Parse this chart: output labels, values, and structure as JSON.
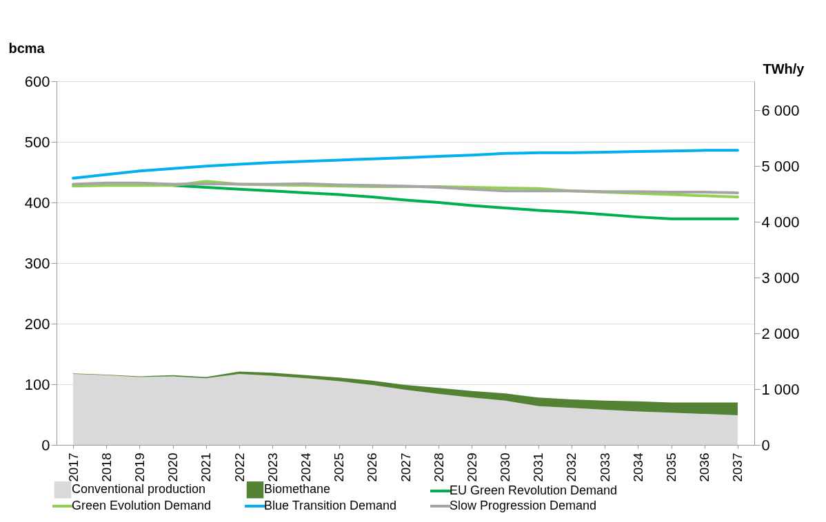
{
  "chart_data": {
    "type": "area",
    "stacked": true,
    "ylabel": "bcma",
    "y2label": "TWh/y",
    "categories": [
      "2017",
      "2018",
      "2019",
      "2020",
      "2021",
      "2022",
      "2023",
      "2024",
      "2025",
      "2026",
      "2027",
      "2028",
      "2029",
      "2030",
      "2031",
      "2032",
      "2033",
      "2034",
      "2035",
      "2036",
      "2037"
    ],
    "series": [
      {
        "name": "Conventional production",
        "type": "area",
        "color": "#d9d9d9",
        "values": [
          117,
          115,
          112,
          113,
          110,
          117,
          114,
          110,
          105,
          99,
          91,
          84,
          78,
          73,
          64,
          61,
          58,
          55,
          53,
          51,
          49
        ]
      },
      {
        "name": "Biomethane",
        "type": "area",
        "color": "#548235",
        "values": [
          1,
          1,
          1,
          2,
          2,
          4,
          5,
          5,
          6,
          7,
          8,
          10,
          11,
          12,
          14,
          14,
          15,
          17,
          17,
          19,
          21
        ]
      },
      {
        "name": "EU Green Revolution Demand",
        "type": "line",
        "color": "#00b050",
        "values": [
          null,
          null,
          null,
          428,
          425,
          422,
          419,
          416,
          413,
          409,
          404,
          400,
          395,
          391,
          387,
          384,
          380,
          376,
          373,
          373,
          373
        ]
      },
      {
        "name": "Green Evolution Demand",
        "type": "line",
        "color": "#92d050",
        "values": [
          427,
          428,
          428,
          428,
          435,
          430,
          429,
          428,
          427,
          426,
          426,
          426,
          425,
          424,
          423,
          419,
          417,
          415,
          413,
          411,
          409
        ]
      },
      {
        "name": "Blue Transition Demand",
        "type": "line",
        "color": "#00b0f0",
        "values": [
          440,
          446,
          452,
          456,
          460,
          463,
          466,
          468,
          470,
          472,
          474,
          476,
          478,
          481,
          482,
          482,
          483,
          484,
          485,
          486,
          486
        ]
      },
      {
        "name": "Slow Progression Demand",
        "type": "line",
        "color": "#a5a5a5",
        "values": [
          430,
          432,
          432,
          430,
          431,
          430,
          430,
          431,
          429,
          428,
          427,
          425,
          422,
          419,
          419,
          419,
          418,
          418,
          417,
          417,
          416
        ]
      }
    ],
    "ylim": [
      0,
      600
    ],
    "yticks": [
      0,
      100,
      200,
      300,
      400,
      500,
      600
    ],
    "y2lim": [
      0,
      6520
    ],
    "y2ticks": [
      0,
      {
        "value": 1000,
        "label": "1 000"
      },
      {
        "value": 2000,
        "label": "2 000"
      },
      {
        "value": 3000,
        "label": "3 000"
      },
      {
        "value": 4000,
        "label": "4 000"
      },
      {
        "value": 5000,
        "label": "5 000"
      },
      {
        "value": 6000,
        "label": "6 000"
      }
    ],
    "grid": "y",
    "legend": "bottom"
  }
}
